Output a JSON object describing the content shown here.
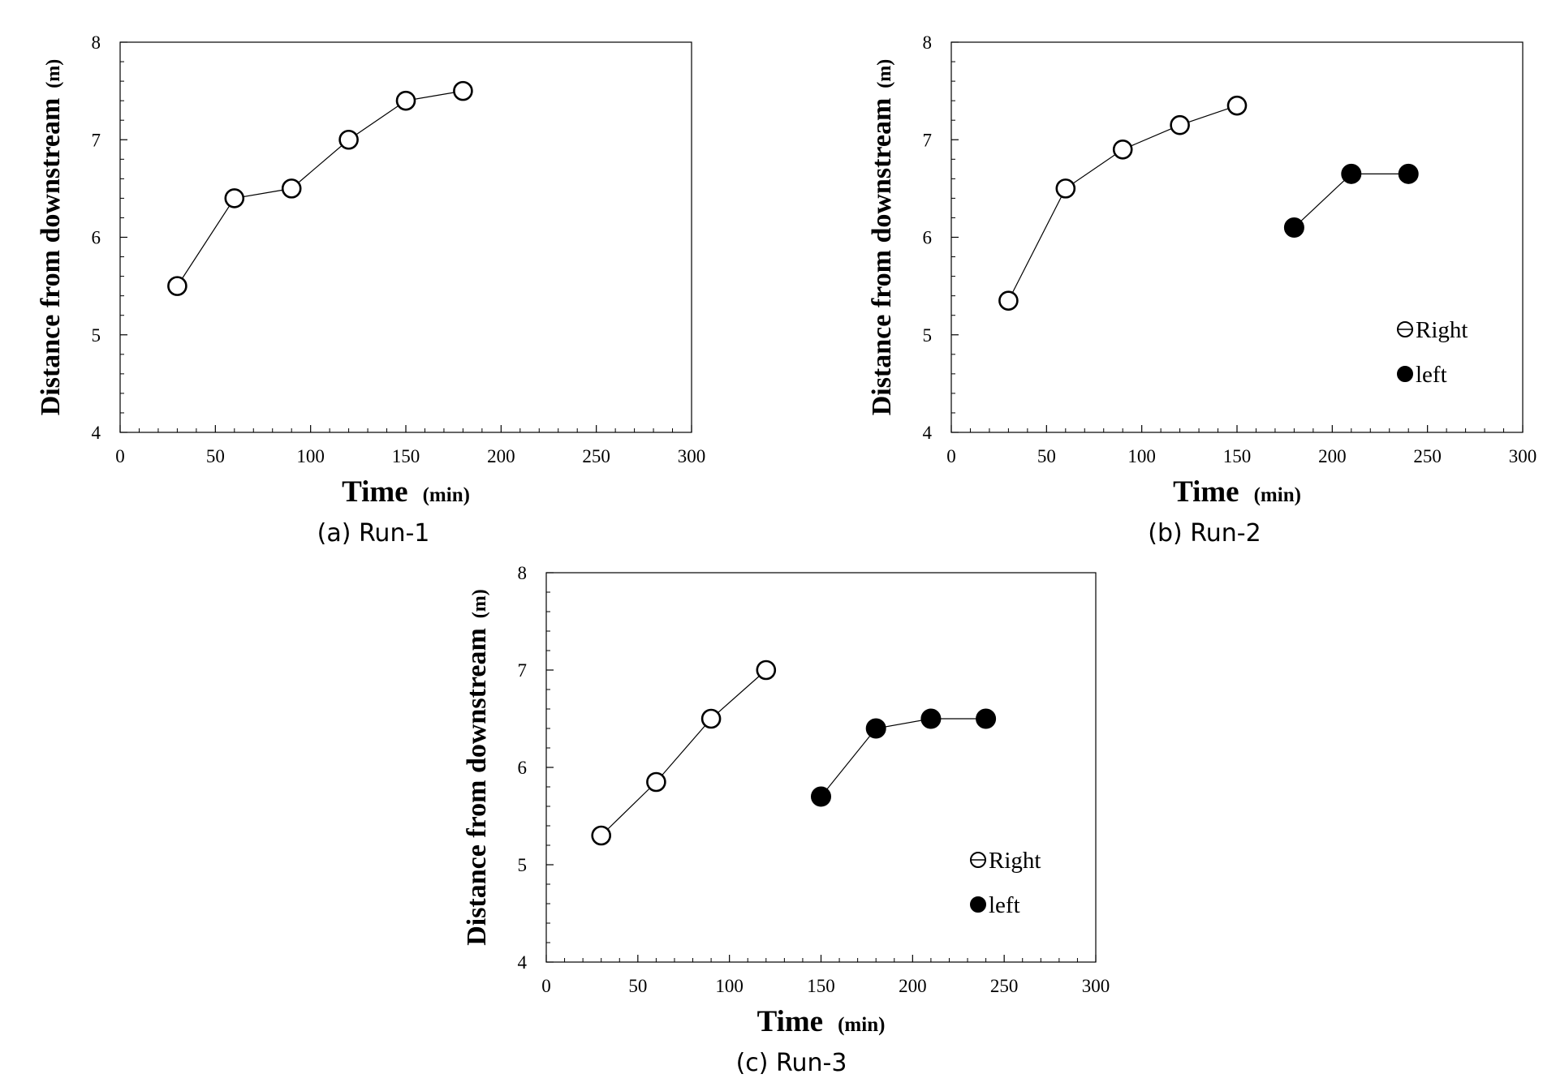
{
  "chart_data": [
    {
      "type": "scatter",
      "caption": "(a) Run-1",
      "xlabel": "Time",
      "xlabel_unit": "(min)",
      "ylabel": "Distance from downstream",
      "ylabel_unit": "(m)",
      "xlim": [
        0,
        300
      ],
      "ylim": [
        4,
        8
      ],
      "xticks": [
        0,
        50,
        100,
        150,
        200,
        250,
        300
      ],
      "yticks": [
        4,
        5,
        6,
        7,
        8
      ],
      "grid": false,
      "legend": null,
      "series": [
        {
          "name": "",
          "marker": "open-circle",
          "color": "#000000",
          "x": [
            30,
            60,
            90,
            120,
            150,
            180
          ],
          "y": [
            5.5,
            6.4,
            6.5,
            7.0,
            7.4,
            7.5
          ]
        }
      ]
    },
    {
      "type": "scatter",
      "caption": "(b) Run-2",
      "xlabel": "Time",
      "xlabel_unit": "(min)",
      "ylabel": "Distance from downstream",
      "ylabel_unit": "(m)",
      "xlim": [
        0,
        300
      ],
      "ylim": [
        4,
        8
      ],
      "xticks": [
        0,
        50,
        100,
        150,
        200,
        250,
        300
      ],
      "yticks": [
        4,
        5,
        6,
        7,
        8
      ],
      "grid": false,
      "legend": "bottom-right",
      "series": [
        {
          "name": "Right",
          "marker": "open-circle",
          "color": "#000000",
          "x": [
            30,
            60,
            90,
            120,
            150
          ],
          "y": [
            5.35,
            6.5,
            6.9,
            7.15,
            7.35
          ]
        },
        {
          "name": "left",
          "marker": "filled-circle",
          "color": "#000000",
          "x": [
            180,
            210,
            240
          ],
          "y": [
            6.1,
            6.65,
            6.65
          ]
        }
      ]
    },
    {
      "type": "scatter",
      "caption": "(c) Run-3",
      "xlabel": "Time",
      "xlabel_unit": "(min)",
      "ylabel": "Distance from downstream",
      "ylabel_unit": "(m)",
      "xlim": [
        0,
        300
      ],
      "ylim": [
        4,
        8
      ],
      "xticks": [
        0,
        50,
        100,
        150,
        200,
        250,
        300
      ],
      "yticks": [
        4,
        5,
        6,
        7,
        8
      ],
      "grid": false,
      "legend": "bottom-right",
      "series": [
        {
          "name": "Right",
          "marker": "open-circle",
          "color": "#000000",
          "x": [
            30,
            60,
            90,
            120
          ],
          "y": [
            5.3,
            5.85,
            6.5,
            7.0
          ]
        },
        {
          "name": "left",
          "marker": "filled-circle",
          "color": "#000000",
          "x": [
            150,
            180,
            210,
            240
          ],
          "y": [
            5.7,
            6.4,
            6.5,
            6.5
          ]
        }
      ]
    }
  ]
}
